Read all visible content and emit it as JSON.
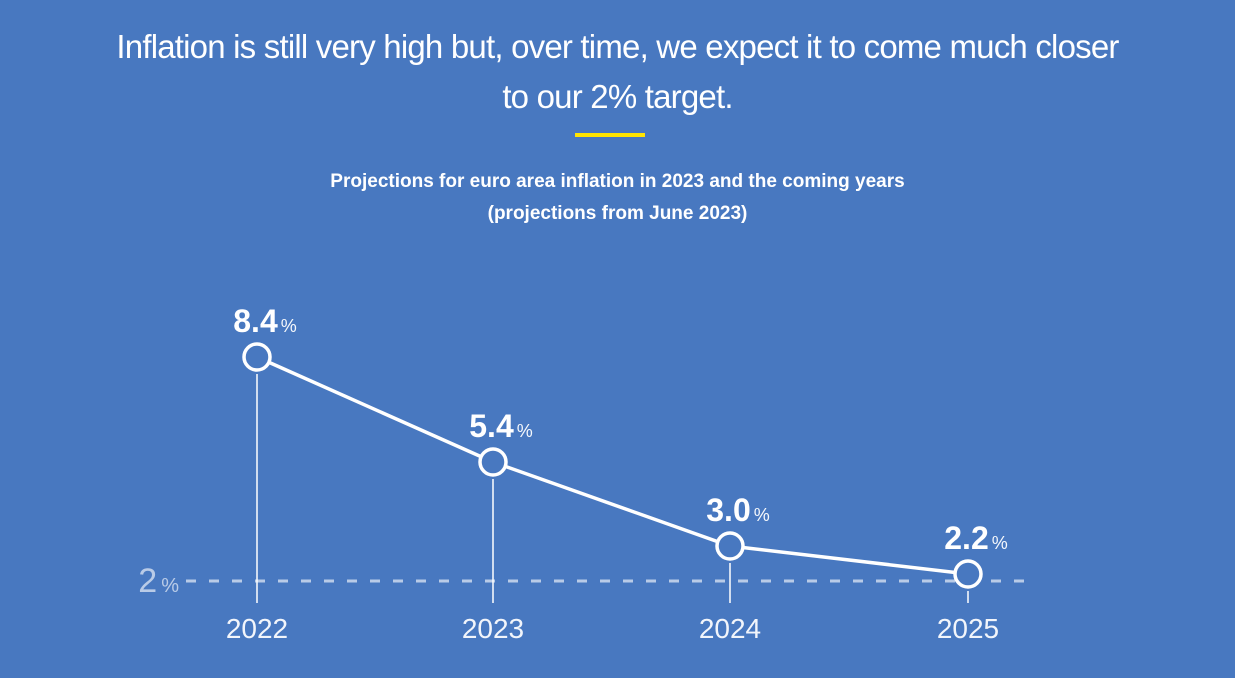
{
  "title": {
    "lines": [
      "Inflation is still very high but, over time, we expect it to come much closer",
      "to our 2% target."
    ]
  },
  "colors": {
    "background": "#4878c0",
    "accent_yellow": "#ffe500",
    "line_white": "#ffffff",
    "muted_white": "rgba(255,255,255,0.62)",
    "dropline_white": "rgba(255,255,255,0.75)"
  },
  "chart_data": {
    "type": "line",
    "title": "Projections for euro area inflation in 2023 and the coming years",
    "subtitle": "(projections from June 2023)",
    "categories": [
      "2022",
      "2023",
      "2024",
      "2025"
    ],
    "values": [
      8.4,
      5.4,
      3.0,
      2.2
    ],
    "value_labels": [
      "8.4",
      "5.4",
      "3.0",
      "2.2"
    ],
    "unit": "%",
    "target_line": {
      "value": 2,
      "label": "2",
      "unit": "%",
      "style": "dashed"
    },
    "ylim": [
      2,
      9
    ],
    "grid": "off",
    "legend": "none",
    "marker": "circle-outline",
    "line_color": "#ffffff"
  }
}
